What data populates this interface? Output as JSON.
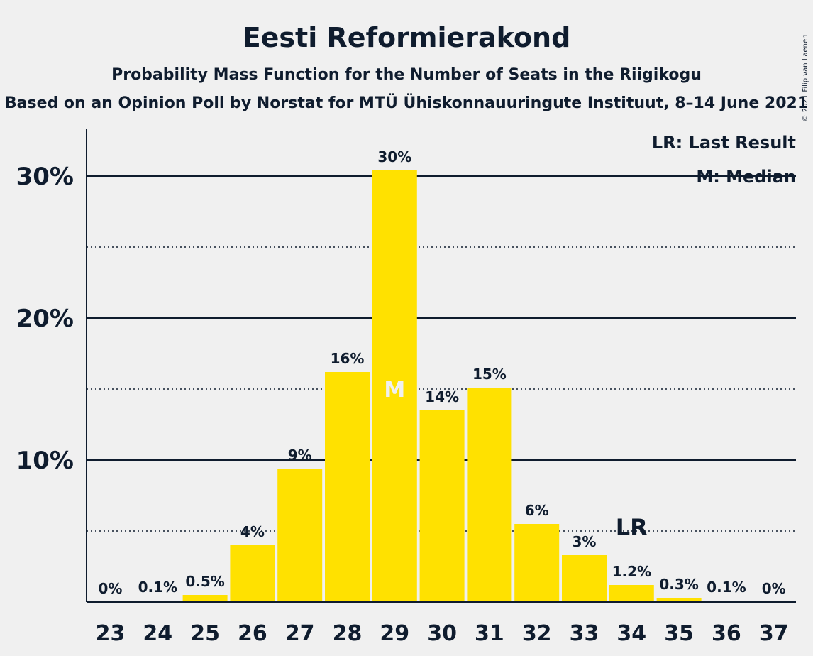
{
  "title": "Eesti Reformierakond",
  "subtitle": "Probability Mass Function for the Number of Seats in the Riigikogu",
  "source": "Based on an Opinion Poll by Norstat for MTÜ Ühiskonnauuringute Instituut, 8–14 June 2021",
  "copyright": "© 2021 Filip van Laenen",
  "legend": {
    "last_result": "LR: Last Result",
    "median": "M: Median"
  },
  "colors": {
    "bar": "#ffe100",
    "text": "#0f1c2e",
    "background": "#f0f0f0"
  },
  "chart_data": {
    "type": "bar",
    "categories": [
      "23",
      "24",
      "25",
      "26",
      "27",
      "28",
      "29",
      "30",
      "31",
      "32",
      "33",
      "34",
      "35",
      "36",
      "37"
    ],
    "values": [
      0,
      0.1,
      0.5,
      4,
      9.4,
      16.2,
      30.4,
      13.5,
      15.1,
      5.5,
      3.3,
      1.2,
      0.3,
      0.1,
      0
    ],
    "labels": [
      "0%",
      "0.1%",
      "0.5%",
      "4%",
      "9%",
      "16%",
      "30%",
      "14%",
      "15%",
      "6%",
      "3%",
      "1.2%",
      "0.3%",
      "0.1%",
      "0%"
    ],
    "ylim": [
      0,
      33
    ],
    "yticks": [
      10,
      20,
      30
    ],
    "ytick_labels": [
      "10%",
      "20%",
      "30%"
    ],
    "minor_gridlines": [
      5,
      15,
      25
    ],
    "median_category": "29",
    "median_marker": "M",
    "last_result_category": "34",
    "last_result_marker": "LR",
    "legend_position": "top-right"
  }
}
